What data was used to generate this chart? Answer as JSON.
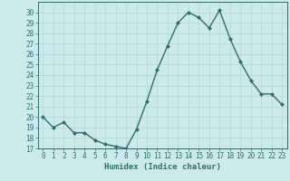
{
  "title": "",
  "xlabel": "Humidex (Indice chaleur)",
  "x_values": [
    0,
    1,
    2,
    3,
    4,
    5,
    6,
    7,
    8,
    9,
    10,
    11,
    12,
    13,
    14,
    15,
    16,
    17,
    18,
    19,
    20,
    21,
    22,
    23
  ],
  "y_values": [
    20,
    19,
    19.5,
    18.5,
    18.5,
    17.8,
    17.4,
    17.2,
    17.0,
    18.8,
    21.5,
    24.5,
    26.8,
    29.0,
    30.0,
    29.5,
    28.5,
    30.2,
    27.5,
    25.3,
    23.5,
    22.2,
    22.2,
    21.2
  ],
  "ylim": [
    17,
    31
  ],
  "yticks": [
    17,
    18,
    19,
    20,
    21,
    22,
    23,
    24,
    25,
    26,
    27,
    28,
    29,
    30
  ],
  "line_color": "#2e6e6e",
  "marker": "D",
  "marker_size": 2.0,
  "bg_color": "#cceaea",
  "grid_color": "#b8d8d8",
  "tick_color": "#2e6e6e",
  "xlabel_color": "#2e6e6e",
  "font_family": "monospace",
  "tick_fontsize": 5.5,
  "xlabel_fontsize": 6.5
}
